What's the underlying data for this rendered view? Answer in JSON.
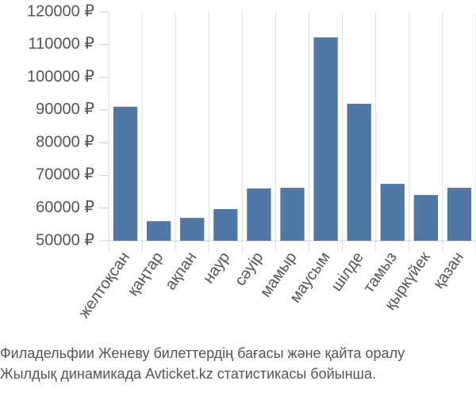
{
  "chart_data": {
    "type": "bar",
    "categories": [
      "желтоқсан",
      "қаңтар",
      "ақпан",
      "наур",
      "сәуір",
      "мамыр",
      "маусым",
      "шілде",
      "тамыз",
      "қыркүйек",
      "қазан"
    ],
    "values": [
      91000,
      56000,
      57000,
      59700,
      66000,
      66200,
      112200,
      91900,
      67400,
      64000,
      66200
    ],
    "color": "#4e79a7",
    "ylim": [
      50000,
      120000
    ],
    "yticks": [
      {
        "value": 50000,
        "label": "50000 ₽"
      },
      {
        "value": 60000,
        "label": "60000 ₽"
      },
      {
        "value": 70000,
        "label": "70000 ₽"
      },
      {
        "value": 80000,
        "label": "80000 ₽"
      },
      {
        "value": 90000,
        "label": "90000 ₽"
      },
      {
        "value": 100000,
        "label": "100000 ₽"
      },
      {
        "value": 110000,
        "label": "110000 ₽"
      },
      {
        "value": 120000,
        "label": "120000 ₽"
      }
    ],
    "grid": true,
    "caption": [
      "Филадельфии Женеву билеттердің бағасы және қайта оралу",
      "Жылдық динамикада Avticket.kz статистикасы бойынша."
    ]
  }
}
